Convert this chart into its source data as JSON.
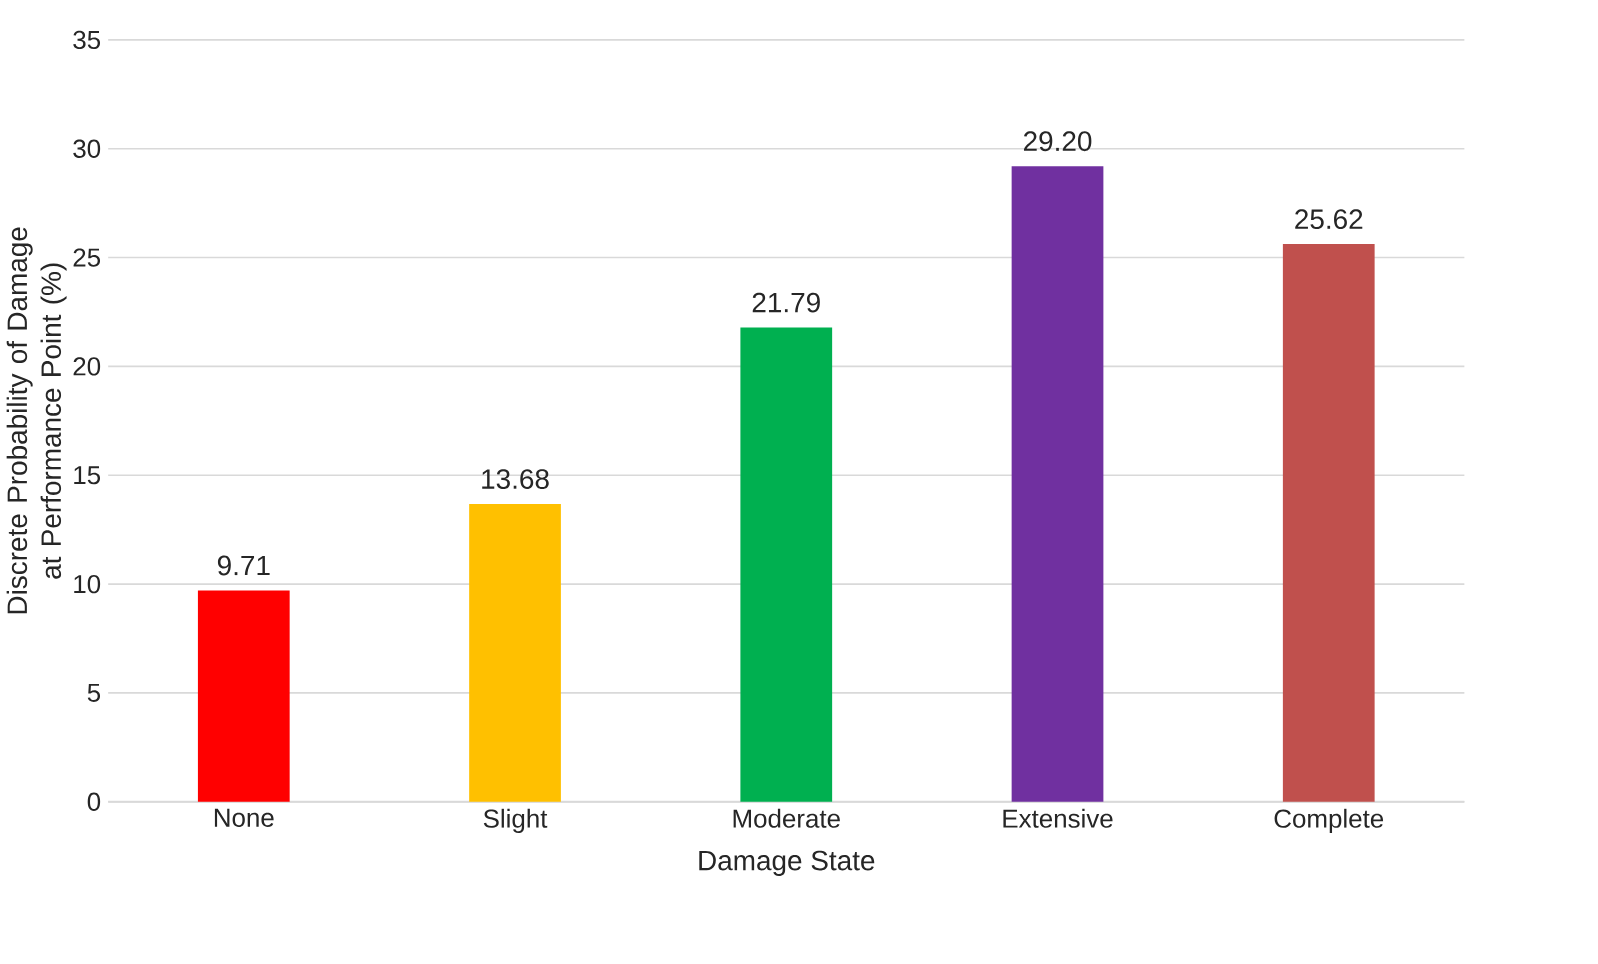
{
  "chart_data": {
    "type": "bar",
    "xlabel": "Damage State",
    "ylabel": "Discrete Probability of Damage at Performance Point (%)",
    "categories": [
      "None",
      "Slight",
      "Moderate",
      "Extensive",
      "Complete"
    ],
    "values": [
      9.71,
      13.68,
      21.79,
      29.2,
      25.62
    ],
    "value_labels": [
      "9.71",
      "13.68",
      "21.79",
      "29.20",
      "25.62"
    ],
    "colors": [
      "#ff0000",
      "#ffc000",
      "#00b050",
      "#7030a0",
      "#c0504d"
    ],
    "ylim": [
      0,
      35
    ],
    "yticks": [
      0,
      5,
      10,
      15,
      20,
      25,
      30,
      35
    ],
    "grid": "y"
  }
}
